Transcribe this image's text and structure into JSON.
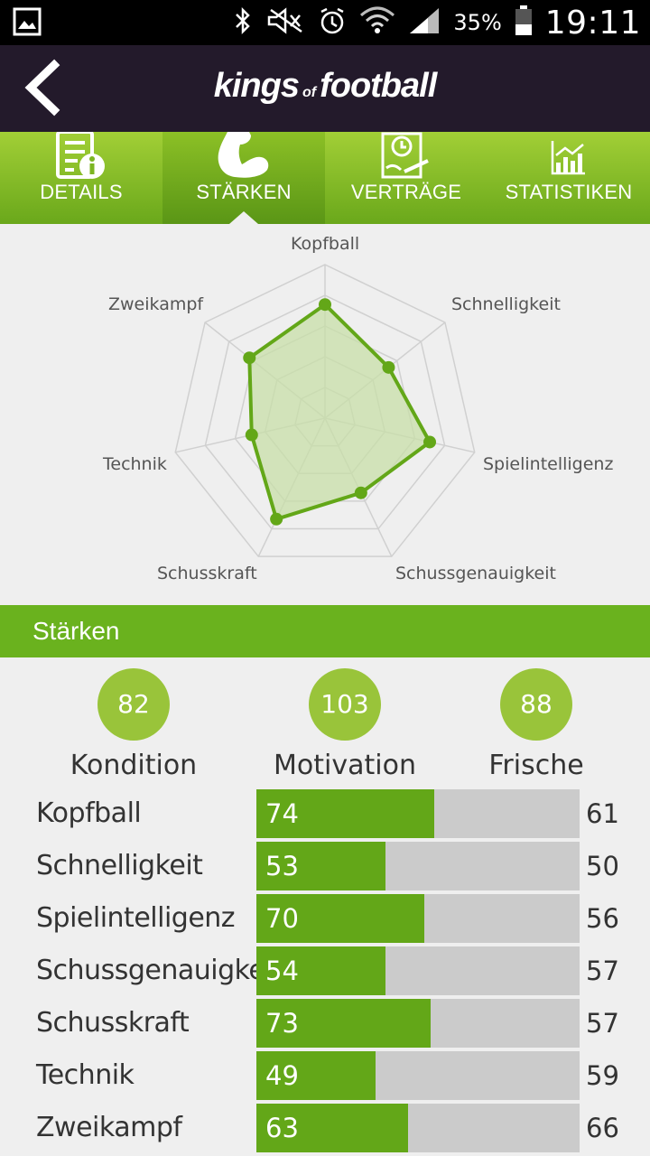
{
  "status_bar": {
    "battery": "35%",
    "time": "19:11"
  },
  "header": {
    "brand_part1": "kings",
    "brand_part2": "of",
    "brand_part3": "football"
  },
  "tabs": [
    {
      "label": "DETAILS",
      "icon": "document-info-icon",
      "active": false
    },
    {
      "label": "STÄRKEN",
      "icon": "flexed-biceps-icon",
      "active": true
    },
    {
      "label": "VERTRÄGE",
      "icon": "contract-clock-icon",
      "active": false
    },
    {
      "label": "STATISTIKEN",
      "icon": "bar-chart-icon",
      "active": false
    }
  ],
  "radar": {
    "axes": [
      "Kopfball",
      "Schnelligkeit",
      "Spielintelligenz",
      "Schussgenauigkeit",
      "Schusskraft",
      "Technik",
      "Zweikampf"
    ],
    "values": [
      74,
      53,
      70,
      54,
      73,
      49,
      63
    ],
    "max": 100,
    "colors": {
      "line": "#63a718",
      "fill": "#c8dfa8",
      "grid": "#d0d0d0"
    }
  },
  "section": {
    "title": "Stärken"
  },
  "summary": [
    {
      "value": "82",
      "label": "Kondition"
    },
    {
      "value": "103",
      "label": "Motivation"
    },
    {
      "value": "88",
      "label": "Frische"
    }
  ],
  "bars": [
    {
      "name": "Kopfball",
      "value": "74",
      "fill_pct": 55,
      "compare": "61"
    },
    {
      "name": "Schnelligkeit",
      "value": "53",
      "fill_pct": 40,
      "compare": "50"
    },
    {
      "name": "Spielintelligenz",
      "value": "70",
      "fill_pct": 52,
      "compare": "56"
    },
    {
      "name": "Schussgenauigkeit",
      "value": "54",
      "fill_pct": 40,
      "compare": "57"
    },
    {
      "name": "Schusskraft",
      "value": "73",
      "fill_pct": 54,
      "compare": "57"
    },
    {
      "name": "Technik",
      "value": "49",
      "fill_pct": 37,
      "compare": "59"
    },
    {
      "name": "Zweikampf",
      "value": "63",
      "fill_pct": 47,
      "compare": "66"
    }
  ],
  "colors": {
    "accent": "#6ab21e",
    "header_bg": "#231a2b",
    "circle": "#99c43a"
  }
}
